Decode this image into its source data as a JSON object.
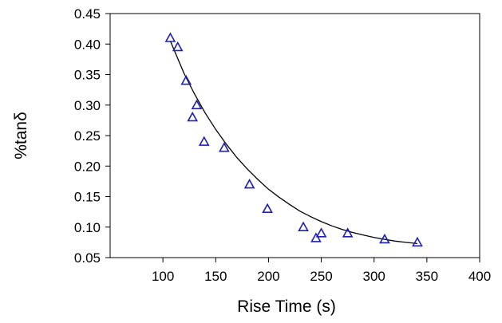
{
  "chart_data": {
    "type": "scatter",
    "title": "",
    "xlabel": "Rise Time (s)",
    "ylabel": "%tanδ",
    "xlim": [
      50,
      400
    ],
    "ylim": [
      0.05,
      0.45
    ],
    "x_ticks": [
      100,
      150,
      200,
      250,
      300,
      350,
      400
    ],
    "y_ticks": [
      0.05,
      0.1,
      0.15,
      0.2,
      0.25,
      0.3,
      0.35,
      0.4,
      0.45
    ],
    "x_tick_labels": [
      "100",
      "150",
      "200",
      "250",
      "300",
      "350",
      "400"
    ],
    "y_tick_labels": [
      "0.05",
      "0.10",
      "0.15",
      "0.20",
      "0.25",
      "0.30",
      "0.35",
      "0.40",
      "0.45"
    ],
    "grid": false,
    "legend": "none",
    "series": [
      {
        "marker": "triangle-open",
        "color": "#1f1fb4",
        "points": [
          {
            "x": 107,
            "y": 0.41
          },
          {
            "x": 114,
            "y": 0.395
          },
          {
            "x": 122,
            "y": 0.34
          },
          {
            "x": 128,
            "y": 0.28
          },
          {
            "x": 132,
            "y": 0.3
          },
          {
            "x": 139,
            "y": 0.24
          },
          {
            "x": 158,
            "y": 0.23
          },
          {
            "x": 182,
            "y": 0.17
          },
          {
            "x": 199,
            "y": 0.13
          },
          {
            "x": 233,
            "y": 0.1
          },
          {
            "x": 245,
            "y": 0.082
          },
          {
            "x": 250,
            "y": 0.09
          },
          {
            "x": 275,
            "y": 0.09
          },
          {
            "x": 310,
            "y": 0.08
          },
          {
            "x": 341,
            "y": 0.075
          }
        ]
      }
    ],
    "fit_curve": {
      "type": "exponential-decay",
      "color": "#000000",
      "points": [
        {
          "x": 107,
          "y": 0.405
        },
        {
          "x": 120,
          "y": 0.352
        },
        {
          "x": 130,
          "y": 0.318
        },
        {
          "x": 140,
          "y": 0.287
        },
        {
          "x": 150,
          "y": 0.26
        },
        {
          "x": 160,
          "y": 0.236
        },
        {
          "x": 170,
          "y": 0.214
        },
        {
          "x": 180,
          "y": 0.195
        },
        {
          "x": 190,
          "y": 0.178
        },
        {
          "x": 200,
          "y": 0.162
        },
        {
          "x": 210,
          "y": 0.149
        },
        {
          "x": 220,
          "y": 0.137
        },
        {
          "x": 230,
          "y": 0.126
        },
        {
          "x": 240,
          "y": 0.117
        },
        {
          "x": 250,
          "y": 0.109
        },
        {
          "x": 260,
          "y": 0.102
        },
        {
          "x": 270,
          "y": 0.096
        },
        {
          "x": 280,
          "y": 0.091
        },
        {
          "x": 290,
          "y": 0.087
        },
        {
          "x": 300,
          "y": 0.083
        },
        {
          "x": 310,
          "y": 0.08
        },
        {
          "x": 320,
          "y": 0.077
        },
        {
          "x": 330,
          "y": 0.075
        },
        {
          "x": 341,
          "y": 0.073
        }
      ]
    }
  }
}
